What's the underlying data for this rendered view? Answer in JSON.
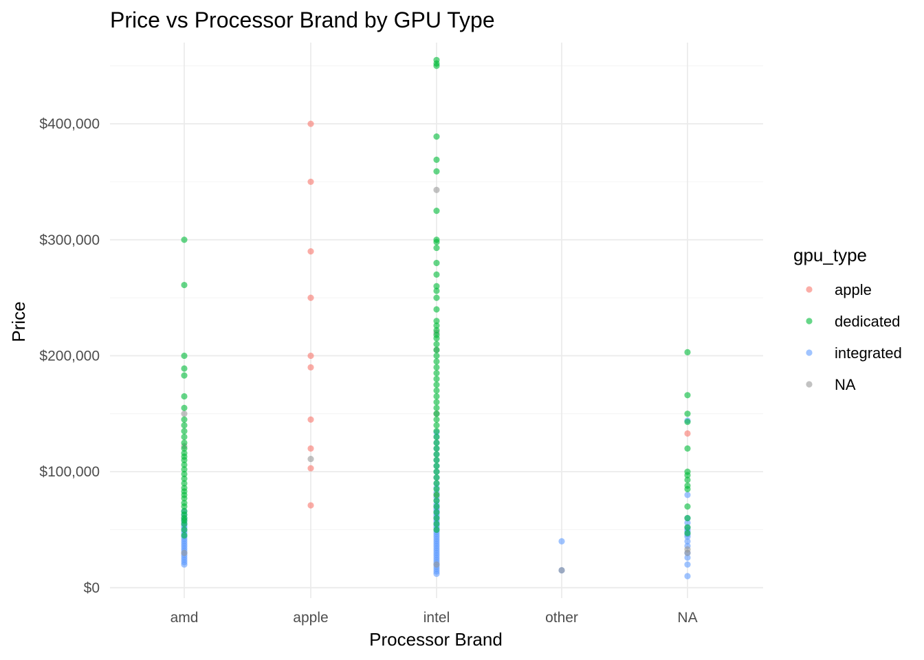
{
  "chart_data": {
    "type": "scatter",
    "title": "Price vs Processor Brand by GPU Type",
    "xlabel": "Processor Brand",
    "ylabel": "Price",
    "categories": [
      "amd",
      "apple",
      "intel",
      "other",
      "NA"
    ],
    "y_ticks": [
      0,
      100000,
      200000,
      300000,
      400000
    ],
    "y_tick_labels": [
      "$0",
      "$100,000",
      "$200,000",
      "$300,000",
      "$400,000"
    ],
    "ylim": [
      -9000,
      470000
    ],
    "grid": true,
    "legend": {
      "title": "gpu_type",
      "placement": "right",
      "entries": [
        {
          "name": "apple",
          "color": "#F8766D"
        },
        {
          "name": "dedicated",
          "color": "#00BA38"
        },
        {
          "name": "integrated",
          "color": "#619CFF"
        },
        {
          "name": "NA",
          "color": "#999999"
        }
      ]
    },
    "series": [
      {
        "name": "integrated",
        "color": "#619CFF",
        "points": [
          [
            "amd",
            20000
          ],
          [
            "amd",
            22000
          ],
          [
            "amd",
            24000
          ],
          [
            "amd",
            26000
          ],
          [
            "amd",
            28000
          ],
          [
            "amd",
            30000
          ],
          [
            "amd",
            32000
          ],
          [
            "amd",
            34000
          ],
          [
            "amd",
            36000
          ],
          [
            "amd",
            38000
          ],
          [
            "amd",
            40000
          ],
          [
            "amd",
            42000
          ],
          [
            "amd",
            44000
          ],
          [
            "amd",
            46000
          ],
          [
            "amd",
            48000
          ],
          [
            "amd",
            50000
          ],
          [
            "amd",
            52000
          ],
          [
            "amd",
            54000
          ],
          [
            "amd",
            56000
          ],
          [
            "amd",
            58000
          ],
          [
            "amd",
            60000
          ],
          [
            "amd",
            63000
          ],
          [
            "amd",
            66000
          ],
          [
            "intel",
            12000
          ],
          [
            "intel",
            14000
          ],
          [
            "intel",
            16000
          ],
          [
            "intel",
            18000
          ],
          [
            "intel",
            20000
          ],
          [
            "intel",
            22000
          ],
          [
            "intel",
            24000
          ],
          [
            "intel",
            26000
          ],
          [
            "intel",
            28000
          ],
          [
            "intel",
            30000
          ],
          [
            "intel",
            32000
          ],
          [
            "intel",
            34000
          ],
          [
            "intel",
            36000
          ],
          [
            "intel",
            38000
          ],
          [
            "intel",
            40000
          ],
          [
            "intel",
            42000
          ],
          [
            "intel",
            44000
          ],
          [
            "intel",
            46000
          ],
          [
            "intel",
            48000
          ],
          [
            "intel",
            50000
          ],
          [
            "intel",
            52000
          ],
          [
            "intel",
            54000
          ],
          [
            "intel",
            56000
          ],
          [
            "intel",
            58000
          ],
          [
            "intel",
            60000
          ],
          [
            "intel",
            62000
          ],
          [
            "intel",
            64000
          ],
          [
            "intel",
            66000
          ],
          [
            "intel",
            68000
          ],
          [
            "intel",
            70000
          ],
          [
            "intel",
            72000
          ],
          [
            "intel",
            75000
          ],
          [
            "intel",
            78000
          ],
          [
            "intel",
            82000
          ],
          [
            "intel",
            86000
          ],
          [
            "intel",
            90000
          ],
          [
            "intel",
            95000
          ],
          [
            "intel",
            100000
          ],
          [
            "intel",
            105000
          ],
          [
            "intel",
            110000
          ],
          [
            "intel",
            115000
          ],
          [
            "intel",
            120000
          ],
          [
            "intel",
            125000
          ],
          [
            "intel",
            130000
          ],
          [
            "intel",
            134000
          ],
          [
            "other",
            40000
          ],
          [
            "other",
            15000
          ],
          [
            "NA",
            10000
          ],
          [
            "NA",
            20000
          ],
          [
            "NA",
            26000
          ],
          [
            "NA",
            30000
          ],
          [
            "NA",
            36000
          ],
          [
            "NA",
            40000
          ],
          [
            "NA",
            44000
          ],
          [
            "NA",
            46000
          ],
          [
            "NA",
            48000
          ],
          [
            "NA",
            50000
          ],
          [
            "NA",
            52000
          ],
          [
            "NA",
            56000
          ],
          [
            "NA",
            60000
          ],
          [
            "NA",
            80000
          ],
          [
            "NA",
            144000
          ]
        ]
      },
      {
        "name": "NA",
        "color": "#999999",
        "points": [
          [
            "amd",
            30000
          ],
          [
            "amd",
            122000
          ],
          [
            "amd",
            150000
          ],
          [
            "apple",
            111000
          ],
          [
            "intel",
            20000
          ],
          [
            "intel",
            80000
          ],
          [
            "intel",
            150000
          ],
          [
            "intel",
            205000
          ],
          [
            "intel",
            220000
          ],
          [
            "intel",
            343000
          ],
          [
            "other",
            15000
          ],
          [
            "NA",
            30000
          ],
          [
            "NA",
            33000
          ]
        ]
      },
      {
        "name": "dedicated",
        "color": "#00BA38",
        "points": [
          [
            "amd",
            45000
          ],
          [
            "amd",
            50000
          ],
          [
            "amd",
            55000
          ],
          [
            "amd",
            58000
          ],
          [
            "amd",
            60000
          ],
          [
            "amd",
            63000
          ],
          [
            "amd",
            66000
          ],
          [
            "amd",
            70000
          ],
          [
            "amd",
            73000
          ],
          [
            "amd",
            77000
          ],
          [
            "amd",
            80000
          ],
          [
            "amd",
            83000
          ],
          [
            "amd",
            86000
          ],
          [
            "amd",
            90000
          ],
          [
            "amd",
            94000
          ],
          [
            "amd",
            98000
          ],
          [
            "amd",
            102000
          ],
          [
            "amd",
            106000
          ],
          [
            "amd",
            110000
          ],
          [
            "amd",
            113000
          ],
          [
            "amd",
            116000
          ],
          [
            "amd",
            120000
          ],
          [
            "amd",
            125000
          ],
          [
            "amd",
            130000
          ],
          [
            "amd",
            135000
          ],
          [
            "amd",
            140000
          ],
          [
            "amd",
            145000
          ],
          [
            "amd",
            155000
          ],
          [
            "amd",
            165000
          ],
          [
            "amd",
            183000
          ],
          [
            "amd",
            189000
          ],
          [
            "amd",
            200000
          ],
          [
            "amd",
            261000
          ],
          [
            "amd",
            300000
          ],
          [
            "intel",
            50000
          ],
          [
            "intel",
            55000
          ],
          [
            "intel",
            60000
          ],
          [
            "intel",
            65000
          ],
          [
            "intel",
            70000
          ],
          [
            "intel",
            75000
          ],
          [
            "intel",
            80000
          ],
          [
            "intel",
            85000
          ],
          [
            "intel",
            90000
          ],
          [
            "intel",
            95000
          ],
          [
            "intel",
            100000
          ],
          [
            "intel",
            105000
          ],
          [
            "intel",
            110000
          ],
          [
            "intel",
            115000
          ],
          [
            "intel",
            120000
          ],
          [
            "intel",
            125000
          ],
          [
            "intel",
            130000
          ],
          [
            "intel",
            135000
          ],
          [
            "intel",
            140000
          ],
          [
            "intel",
            145000
          ],
          [
            "intel",
            150000
          ],
          [
            "intel",
            155000
          ],
          [
            "intel",
            160000
          ],
          [
            "intel",
            165000
          ],
          [
            "intel",
            170000
          ],
          [
            "intel",
            175000
          ],
          [
            "intel",
            180000
          ],
          [
            "intel",
            185000
          ],
          [
            "intel",
            190000
          ],
          [
            "intel",
            195000
          ],
          [
            "intel",
            200000
          ],
          [
            "intel",
            205000
          ],
          [
            "intel",
            210000
          ],
          [
            "intel",
            215000
          ],
          [
            "intel",
            218000
          ],
          [
            "intel",
            222000
          ],
          [
            "intel",
            226000
          ],
          [
            "intel",
            230000
          ],
          [
            "intel",
            240000
          ],
          [
            "intel",
            250000
          ],
          [
            "intel",
            256000
          ],
          [
            "intel",
            260000
          ],
          [
            "intel",
            270000
          ],
          [
            "intel",
            280000
          ],
          [
            "intel",
            293000
          ],
          [
            "intel",
            298000
          ],
          [
            "intel",
            300000
          ],
          [
            "intel",
            325000
          ],
          [
            "intel",
            359000
          ],
          [
            "intel",
            369000
          ],
          [
            "intel",
            389000
          ],
          [
            "intel",
            450000
          ],
          [
            "intel",
            452000
          ],
          [
            "intel",
            455000
          ],
          [
            "NA",
            47000
          ],
          [
            "NA",
            52000
          ],
          [
            "NA",
            60000
          ],
          [
            "NA",
            70000
          ],
          [
            "NA",
            85000
          ],
          [
            "NA",
            88000
          ],
          [
            "NA",
            93000
          ],
          [
            "NA",
            97000
          ],
          [
            "NA",
            100000
          ],
          [
            "NA",
            120000
          ],
          [
            "NA",
            143000
          ],
          [
            "NA",
            150000
          ],
          [
            "NA",
            166000
          ],
          [
            "NA",
            203000
          ]
        ]
      },
      {
        "name": "apple",
        "color": "#F8766D",
        "points": [
          [
            "apple",
            71000
          ],
          [
            "apple",
            103000
          ],
          [
            "apple",
            120000
          ],
          [
            "apple",
            145000
          ],
          [
            "apple",
            190000
          ],
          [
            "apple",
            200000
          ],
          [
            "apple",
            250000
          ],
          [
            "apple",
            290000
          ],
          [
            "apple",
            350000
          ],
          [
            "apple",
            400000
          ],
          [
            "NA",
            133000
          ]
        ]
      }
    ]
  }
}
